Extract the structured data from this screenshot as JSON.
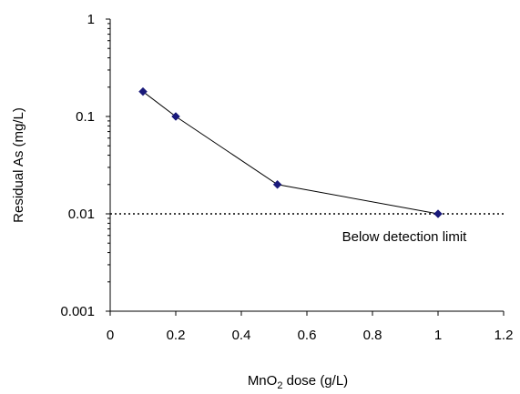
{
  "chart_data": {
    "type": "line",
    "title": "",
    "xlabel": {
      "prefix": "MnO",
      "subscript": "2",
      "suffix": " dose (g/L)"
    },
    "ylabel": "Residual As (mg/L)",
    "xscale": "linear",
    "yscale": "log",
    "xlim": [
      0,
      1.2
    ],
    "ylim": [
      0.001,
      1
    ],
    "xticks": [
      0,
      0.2,
      0.4,
      0.6,
      0.8,
      1,
      1.2
    ],
    "xtick_labels": [
      "0",
      "0.2",
      "0.4",
      "0.6",
      "0.8",
      "1",
      "1.2"
    ],
    "yticks": [
      0.001,
      0.01,
      0.1,
      1
    ],
    "ytick_labels": [
      "0.001",
      "0.01",
      "0.1",
      "1"
    ],
    "grid": false,
    "legend": "none",
    "series": [
      {
        "x": [
          0.1,
          0.2,
          0.51,
          1.0
        ],
        "y": [
          0.18,
          0.1,
          0.02,
          0.01
        ],
        "marker": "diamond",
        "marker_color": "#1a1a7a",
        "line_color": "#000000"
      }
    ],
    "reference_line": {
      "y": 0.01,
      "style": "dotted",
      "color": "#000000",
      "label": "Below detection limit"
    }
  }
}
